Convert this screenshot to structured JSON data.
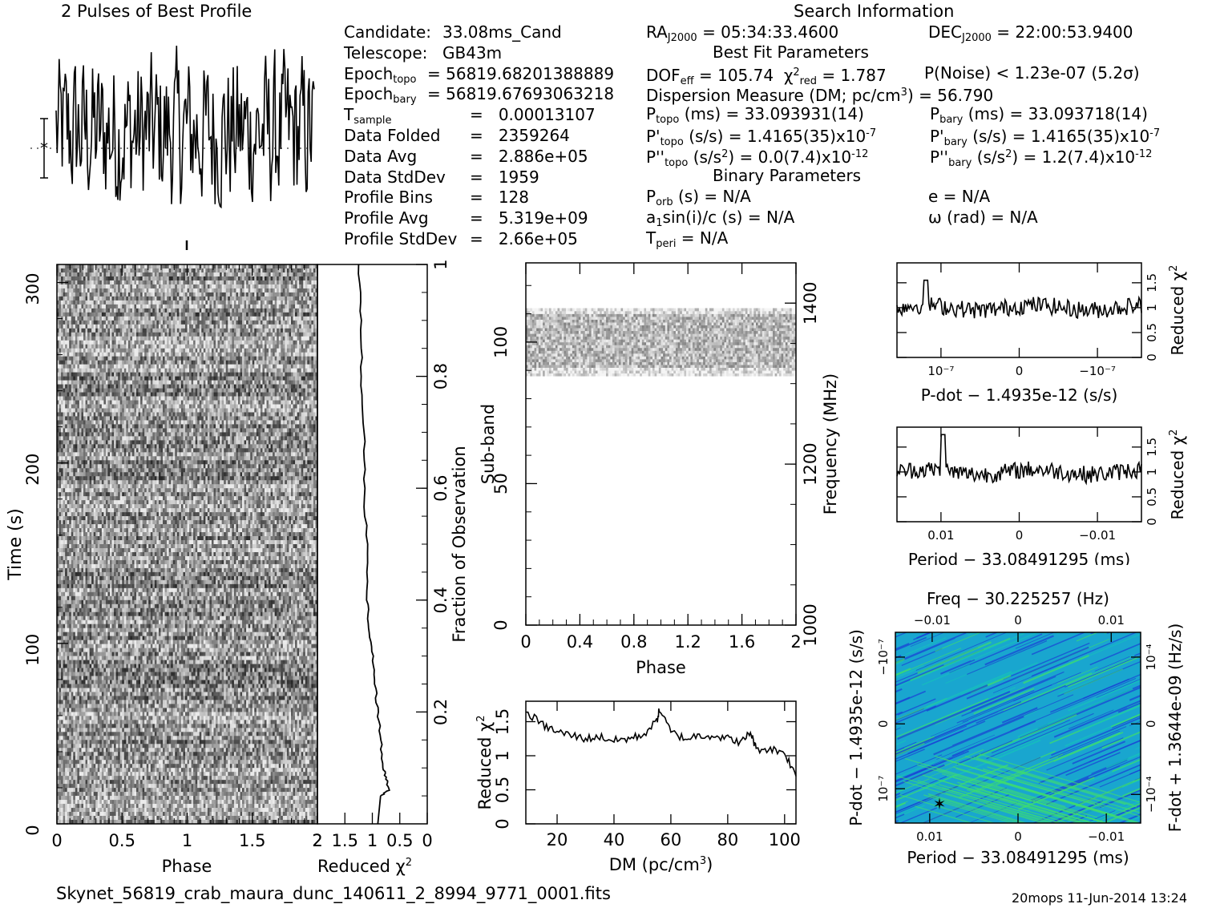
{
  "title_profile": "2 Pulses of Best Profile",
  "title_search": "Search Information",
  "footer_file": "Skynet_56819_crab_maura_dunc_140611_2_8994_9771_0001.fits",
  "footer_stamp": "20mops  11-Jun-2014 13:24",
  "info_left": [
    {
      "label": "Candidate:",
      "sub": "",
      "value": "33.08ms_Cand"
    },
    {
      "label": "Telescope:",
      "sub": "",
      "value": "GB43m"
    },
    {
      "label": "Epoch",
      "sub": "topo",
      "value": "= 56819.68201388889"
    },
    {
      "label": "Epoch",
      "sub": "bary",
      "value": "= 56819.67693063218"
    },
    {
      "label": "T",
      "sub": "sample",
      "value": "=   0.00013107"
    },
    {
      "label": "Data Folded",
      "sub": "",
      "value": "=   2359264"
    },
    {
      "label": "Data Avg",
      "sub": "",
      "value": "=   2.886e+05"
    },
    {
      "label": "Data StdDev",
      "sub": "",
      "value": "=   1959"
    },
    {
      "label": "Profile Bins",
      "sub": "",
      "value": "=   128"
    },
    {
      "label": "Profile Avg",
      "sub": "",
      "value": "=   5.319e+09"
    },
    {
      "label": "Profile StdDev",
      "sub": "",
      "value": "=   2.66e+05"
    }
  ],
  "info_mid": {
    "ra_label": "RA",
    "ra_sub": "J2000",
    "ra_value": "= 05:34:33.4600",
    "dec_label": "DEC",
    "dec_sub": "J2000",
    "dec_value": "= 22:00:53.9400",
    "best_fit_header": "Best Fit Parameters",
    "dof_label": "DOF",
    "dof_sub": "eff",
    "dof_value": "= 105.74",
    "chi_label": "χ",
    "chi_sup": "2",
    "chi_sub": "red",
    "chi_value": "= 1.787",
    "pnoise": "P(Noise) < 1.23e-07   (5.2σ)",
    "dm_line": "Dispersion Measure (DM; pc/cm",
    "dm_sup": "3",
    "dm_tail": ") = 56.790",
    "ptopo_label": "P",
    "ptopo_sub": "topo",
    "ptopo_value": "(ms) =  33.093931(14)",
    "pbary_label": "P",
    "pbary_sub": "bary",
    "pbary_value": "(ms) =  33.093718(14)",
    "pdtopo_label": "P'",
    "pdtopo_sub": "topo",
    "pdtopo_value": "(s/s) =  1.4165(35)x10",
    "pdtopo_exp": "-7",
    "pdbary_label": "P'",
    "pdbary_sub": "bary",
    "pdbary_value": "(s/s) =  1.4165(35)x10",
    "pdbary_exp": "-7",
    "pddtopo_label": "P''",
    "pddtopo_sub": "topo",
    "pddtopo_value": "(s/s",
    "pddtopo_sup": "2",
    "pddtopo_tail": ") = 0.0(7.4)x10",
    "pddtopo_exp": "-12",
    "pddbary_label": "P''",
    "pddbary_sub": "bary",
    "pddbary_value": "(s/s",
    "pddbary_sup": "2",
    "pddbary_tail": ") =  1.2(7.4)x10",
    "pddbary_exp": "-12",
    "binary_header": "Binary Parameters",
    "porb_label": "P",
    "porb_sub": "orb",
    "porb_value": "(s) = N/A",
    "e_value": "e = N/A",
    "a1_label": "a",
    "a1_sub": "1",
    "a1_value": "sin(i)/c (s) = N/A",
    "omega_value": "ω (rad) = N/A",
    "tperi_label": "T",
    "tperi_sub": "peri",
    "tperi_value": "= N/A"
  },
  "axes": {
    "waterfall_ylabel": "Time (s)",
    "waterfall_xlabel": "Phase",
    "waterfall_yticks": [
      "0",
      "100",
      "200",
      "300"
    ],
    "waterfall_xticks": [
      "0",
      "0.5",
      "1",
      "1.5",
      "2"
    ],
    "redchi_xlabel": "Reduced χ",
    "redchi_xlabel_sup": "2",
    "redchi_xticks": [
      "2",
      "1.5",
      "1",
      "0.5",
      "0"
    ],
    "fraction_label": "Fraction of Observation",
    "fraction_ticks": [
      "0.2",
      "0.4",
      "0.6",
      "0.8",
      "1"
    ],
    "subband_ylabel": "Sub-band",
    "subband_yticks": [
      "0",
      "50",
      "100"
    ],
    "subband_xlabel": "Phase",
    "subband_xticks": [
      "0",
      "0.4",
      "0.8",
      "1.2",
      "1.6",
      "2"
    ],
    "freq_label": "Frequency (MHz)",
    "freq_ticks": [
      "1000",
      "1200",
      "1400"
    ],
    "dm_xlabel": "DM (pc/cm",
    "dm_xlabel_sup": "3",
    "dm_xlabel_tail": ")",
    "dm_xticks": [
      "20",
      "40",
      "60",
      "80",
      "100"
    ],
    "dm_ylabel": "Reduced χ",
    "dm_ylabel_sup": "2",
    "dm_yticks": [
      "0",
      "0.5",
      "1",
      "1.5"
    ],
    "pdot_xlabel": "P-dot − 1.4935e-12 (s/s)",
    "pdot_xticks": [
      "10⁻⁷",
      "0",
      "−10⁻⁷"
    ],
    "pdot_ylabel": "Reduced χ",
    "pdot_ylabel_sup": "2",
    "pdot_yticks": [
      "0",
      "0.5",
      "1",
      "1.5"
    ],
    "period_xlabel": "Period − 33.08491295 (ms)",
    "period_xticks": [
      "0.01",
      "0",
      "−0.01"
    ],
    "period_ylabel": "Reduced χ",
    "period_ylabel_sup": "2",
    "period_yticks": [
      "0",
      "0.5",
      "1",
      "1.5"
    ],
    "freq_title": "Freq − 30.225257 (Hz)",
    "freq_top_ticks": [
      "−0.01",
      "0",
      "0.01"
    ],
    "pp_xlabel": "Period − 33.08491295 (ms)",
    "pp_xticks": [
      "0.01",
      "0",
      "−0.01"
    ],
    "pp_ylabel": "P-dot − 1.4935e-12 (s/s)",
    "pp_yticks": [
      "10⁻⁷",
      "0",
      "−10⁻⁷"
    ],
    "pp_rlabel": "F-dot + 1.3644e-09 (Hz/s)",
    "pp_rticks": [
      "−10⁻⁴",
      "0",
      "10⁻⁴"
    ]
  },
  "colors": {
    "ink": "#000000",
    "pp_low": "#1a3fd6",
    "pp_mid": "#19a6cf",
    "pp_high": "#3fe06a"
  },
  "chart_data": [
    {
      "type": "line",
      "title": "2 Pulses of Best Profile",
      "x": "phase 0–2",
      "ylim": [
        0,
        1
      ],
      "note": "noise-like profile, no clear pulse"
    },
    {
      "type": "heatmap",
      "xlabel": "Phase",
      "ylabel": "Time (s)",
      "xlim": [
        0,
        2
      ],
      "ylim": [
        0,
        310
      ]
    },
    {
      "type": "line",
      "xlabel": "Reduced χ2",
      "x_reversed": true,
      "xlim": [
        2,
        0
      ],
      "ylabel": "Fraction of Observation",
      "ylim": [
        0,
        1
      ],
      "points": [
        [
          0.85,
          0.05
        ],
        [
          0.7,
          0.06
        ],
        [
          0.75,
          0.08
        ],
        [
          0.8,
          0.1
        ],
        [
          0.85,
          0.15
        ],
        [
          0.9,
          0.2
        ],
        [
          0.95,
          0.25
        ],
        [
          1.0,
          0.3
        ],
        [
          1.05,
          0.35
        ],
        [
          1.1,
          0.4
        ],
        [
          1.1,
          0.5
        ],
        [
          1.15,
          0.6
        ],
        [
          1.15,
          0.7
        ],
        [
          1.2,
          0.8
        ],
        [
          1.2,
          0.9
        ],
        [
          1.25,
          1.0
        ]
      ]
    },
    {
      "type": "heatmap",
      "xlabel": "Phase",
      "ylabel": "Sub-band",
      "xlim": [
        0,
        2
      ],
      "ylim": [
        0,
        128
      ],
      "active_band": [
        88,
        112
      ],
      "right_axis": {
        "label": "Frequency (MHz)",
        "range": [
          1000,
          1450
        ]
      }
    },
    {
      "type": "line",
      "xlabel": "DM (pc/cm3)",
      "ylabel": "Reduced χ2",
      "xlim": [
        9,
        104
      ],
      "ylim": [
        0,
        1.8
      ],
      "x": [
        9,
        15,
        20,
        25,
        30,
        35,
        40,
        45,
        50,
        55,
        56,
        60,
        65,
        70,
        75,
        80,
        85,
        88,
        90,
        95,
        100,
        104
      ],
      "y": [
        1.65,
        1.45,
        1.35,
        1.3,
        1.25,
        1.28,
        1.22,
        1.25,
        1.3,
        1.5,
        1.68,
        1.35,
        1.25,
        1.3,
        1.3,
        1.25,
        1.2,
        1.35,
        1.1,
        1.1,
        1.05,
        0.7
      ]
    },
    {
      "type": "line",
      "xlabel": "P-dot − 1.4935e-12 (s/s)",
      "ylabel": "Reduced χ2",
      "ylim": [
        0,
        1.9
      ],
      "mean": 1.0,
      "peak": 1.55
    },
    {
      "type": "line",
      "xlabel": "Period − 33.08491295 (ms)",
      "ylabel": "Reduced χ2",
      "ylim": [
        0,
        1.9
      ],
      "mean": 1.0,
      "peak": 1.75
    },
    {
      "type": "heatmap",
      "title": "Freq − 30.225257 (Hz)",
      "xlabel": "Period − 33.08491295 (ms)",
      "ylabel": "P-dot − 1.4935e-12 (s/s)",
      "right_label": "F-dot + 1.3644e-09 (Hz/s)",
      "marker": "best-fit star (lower-left)"
    }
  ]
}
